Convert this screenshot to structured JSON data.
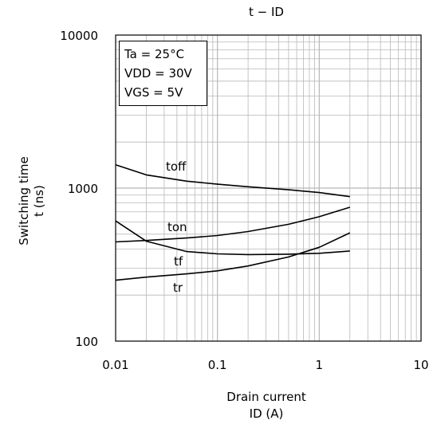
{
  "chart_data": {
    "type": "line",
    "title": "t − ID",
    "ylabel_line1": "Switching time",
    "ylabel_line2": "t (ns)",
    "xlabel_line1": "Drain current",
    "xlabel_line2": "ID (A)",
    "xscale": "log",
    "yscale": "log",
    "xlim": [
      0.01,
      10
    ],
    "ylim": [
      100,
      10000
    ],
    "xticks": [
      {
        "value": 0.01,
        "label": "0.01"
      },
      {
        "value": 0.1,
        "label": "0.1"
      },
      {
        "value": 1,
        "label": "1"
      },
      {
        "value": 10,
        "label": "10"
      }
    ],
    "yticks": [
      {
        "value": 100,
        "label": "100"
      },
      {
        "value": 1000,
        "label": "1000"
      },
      {
        "value": 10000,
        "label": "10000"
      }
    ],
    "grid": true,
    "conditions": [
      "Ta = 25°C",
      "VDD = 30V",
      "VGS = 5V"
    ],
    "series": [
      {
        "name": "toff",
        "x": [
          0.01,
          0.02,
          0.05,
          0.1,
          0.2,
          0.5,
          1,
          2
        ],
        "y": [
          1420,
          1220,
          1110,
          1060,
          1020,
          975,
          935,
          880
        ]
      },
      {
        "name": "ton",
        "x": [
          0.01,
          0.02,
          0.05,
          0.1,
          0.2,
          0.5,
          1,
          2
        ],
        "y": [
          445,
          455,
          472,
          490,
          520,
          580,
          650,
          750
        ]
      },
      {
        "name": "tf",
        "x": [
          0.01,
          0.02,
          0.05,
          0.1,
          0.2,
          0.5,
          1,
          2
        ],
        "y": [
          610,
          450,
          385,
          372,
          368,
          370,
          375,
          388
        ]
      },
      {
        "name": "tr",
        "x": [
          0.01,
          0.02,
          0.05,
          0.1,
          0.2,
          0.5,
          1,
          2
        ],
        "y": [
          250,
          262,
          275,
          288,
          310,
          355,
          410,
          510
        ]
      }
    ]
  },
  "colors": {
    "line": "#000000",
    "grid": "#b8b8b8",
    "background": "#ffffff"
  }
}
